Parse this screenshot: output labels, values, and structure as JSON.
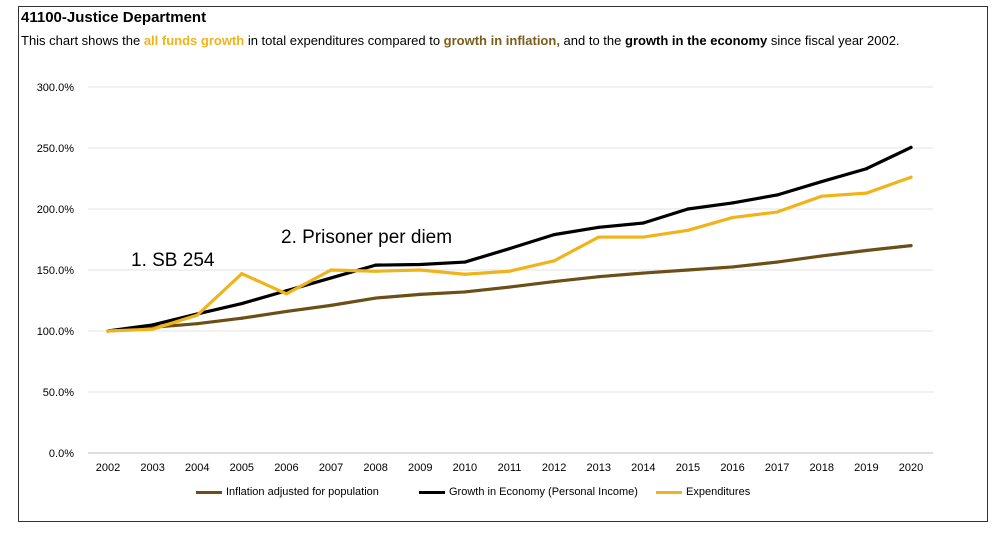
{
  "header": {
    "title": "41100-Justice Department",
    "subtitle": {
      "p1": "This chart shows the ",
      "h1": "all funds growth",
      "p2": " in total expenditures compared to ",
      "h2": "growth in inflation,",
      "p3": " and to the ",
      "h3": "growth in the economy",
      "p4": " since fiscal year 2002."
    }
  },
  "chart_data": {
    "type": "line",
    "title": "41100-Justice Department",
    "xlabel": "",
    "ylabel": "",
    "ylim": [
      0,
      300
    ],
    "yticks": [
      "0.0%",
      "50.0%",
      "100.0%",
      "150.0%",
      "200.0%",
      "250.0%",
      "300.0%"
    ],
    "ytick_values": [
      0,
      50,
      100,
      150,
      200,
      250,
      300
    ],
    "grid": true,
    "legend_position": "bottom",
    "categories": [
      "2002",
      "2003",
      "2004",
      "2005",
      "2006",
      "2007",
      "2008",
      "2009",
      "2010",
      "2011",
      "2012",
      "2013",
      "2014",
      "2015",
      "2016",
      "2017",
      "2018",
      "2019",
      "2020"
    ],
    "series": [
      {
        "name": "Inflation adjusted for population",
        "color": "#6b4f16",
        "values": [
          100,
          103,
          106,
          110.5,
          116,
          121,
          127,
          130,
          132,
          136,
          140.5,
          144.5,
          147.5,
          150,
          152.5,
          156.5,
          161.5,
          166,
          170
        ]
      },
      {
        "name": "Growth in Economy (Personal Income)",
        "color": "#000000",
        "values": [
          100,
          105,
          114,
          122.5,
          133,
          143.5,
          154,
          154.5,
          156.5,
          167.5,
          179,
          185,
          188.5,
          200,
          205,
          211.5,
          222.5,
          233,
          250.5
        ]
      },
      {
        "name": "Expenditures",
        "color": "#f0b41a",
        "values": [
          100,
          101.5,
          113,
          147,
          130.5,
          150,
          149,
          150,
          146.5,
          149,
          157.5,
          177,
          177,
          182.5,
          193,
          197.5,
          210.5,
          213,
          226
        ]
      }
    ],
    "annotations": [
      {
        "text": "1. SB 254",
        "x": "2004",
        "y": 160
      },
      {
        "text": "2. Prisoner per diem",
        "x": "2007",
        "y": 190
      }
    ]
  }
}
